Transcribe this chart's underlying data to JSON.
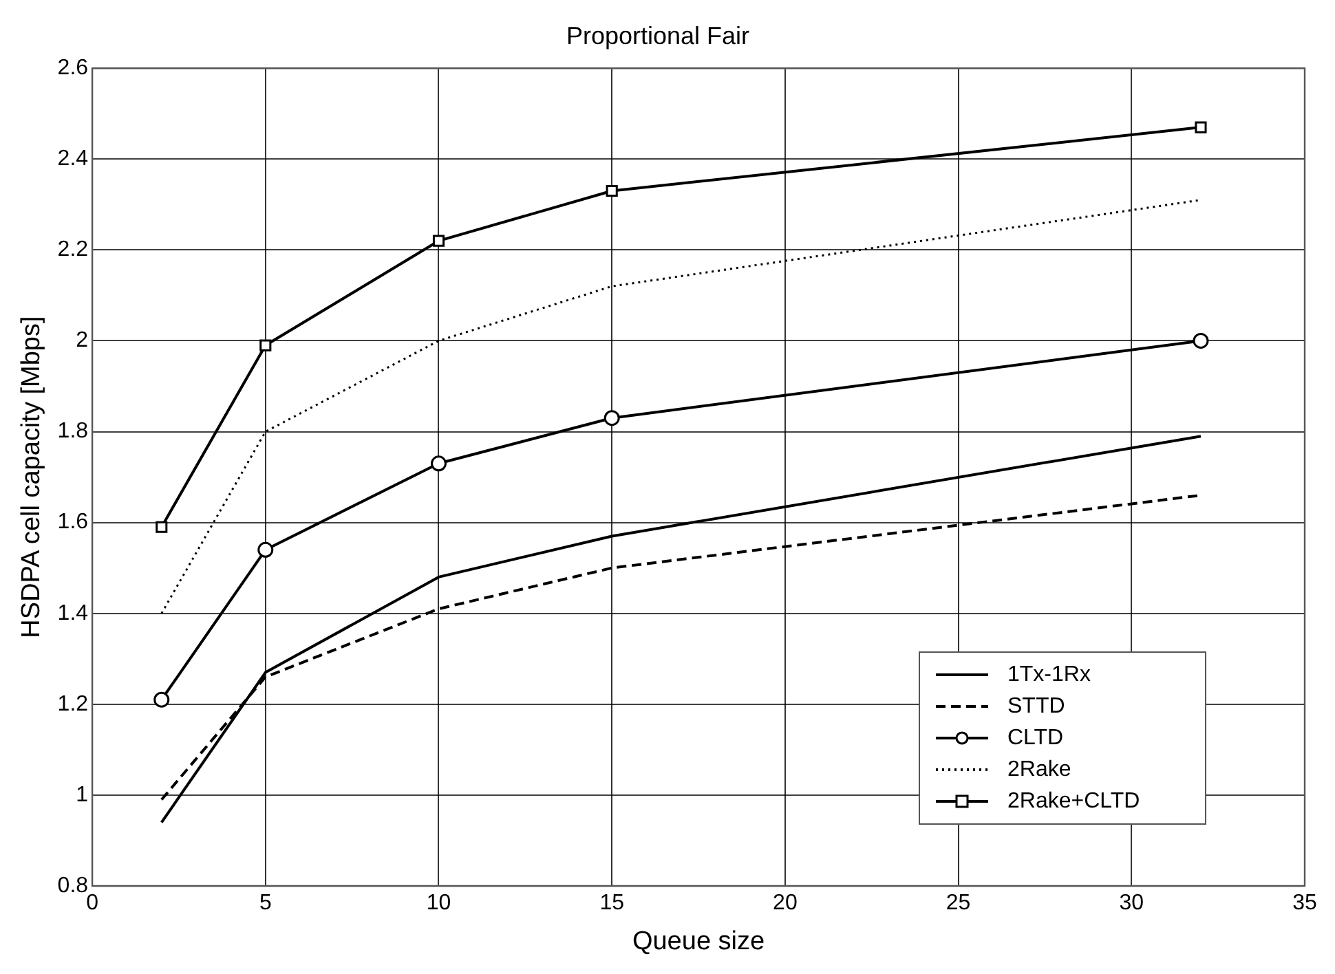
{
  "chart_data": {
    "type": "line",
    "title": "Proportional Fair",
    "xlabel": "Queue size",
    "ylabel": "HSDPA cell capacity [Mbps]",
    "x": [
      2,
      5,
      10,
      15,
      32
    ],
    "series": [
      {
        "name": "1Tx-1Rx",
        "color": "#000000",
        "values": [
          0.94,
          1.27,
          1.48,
          1.57,
          1.79
        ],
        "line_style": "solid",
        "marker": "none"
      },
      {
        "name": "STTD",
        "color": "#000000",
        "values": [
          0.99,
          1.26,
          1.41,
          1.5,
          1.66
        ],
        "line_style": "dashed",
        "marker": "none"
      },
      {
        "name": "CLTD",
        "color": "#000000",
        "values": [
          1.21,
          1.54,
          1.73,
          1.83,
          2.0
        ],
        "line_style": "solid",
        "marker": "circle"
      },
      {
        "name": "2Rake",
        "color": "#000000",
        "values": [
          1.4,
          1.8,
          2.0,
          2.12,
          2.31
        ],
        "line_style": "dotted",
        "marker": "none"
      },
      {
        "name": "2Rake+CLTD",
        "color": "#000000",
        "values": [
          1.59,
          1.99,
          2.22,
          2.33,
          2.47
        ],
        "line_style": "solid",
        "marker": "square"
      }
    ],
    "xlim": [
      0,
      35
    ],
    "xticks": [
      0,
      5,
      10,
      15,
      20,
      25,
      30,
      35
    ],
    "ylim": [
      0.8,
      2.6
    ],
    "yticks": [
      0.8,
      1,
      1.2,
      1.4,
      1.6,
      1.8,
      2,
      2.2,
      2.4,
      2.6
    ],
    "grid": true,
    "legend": "bottom right"
  }
}
